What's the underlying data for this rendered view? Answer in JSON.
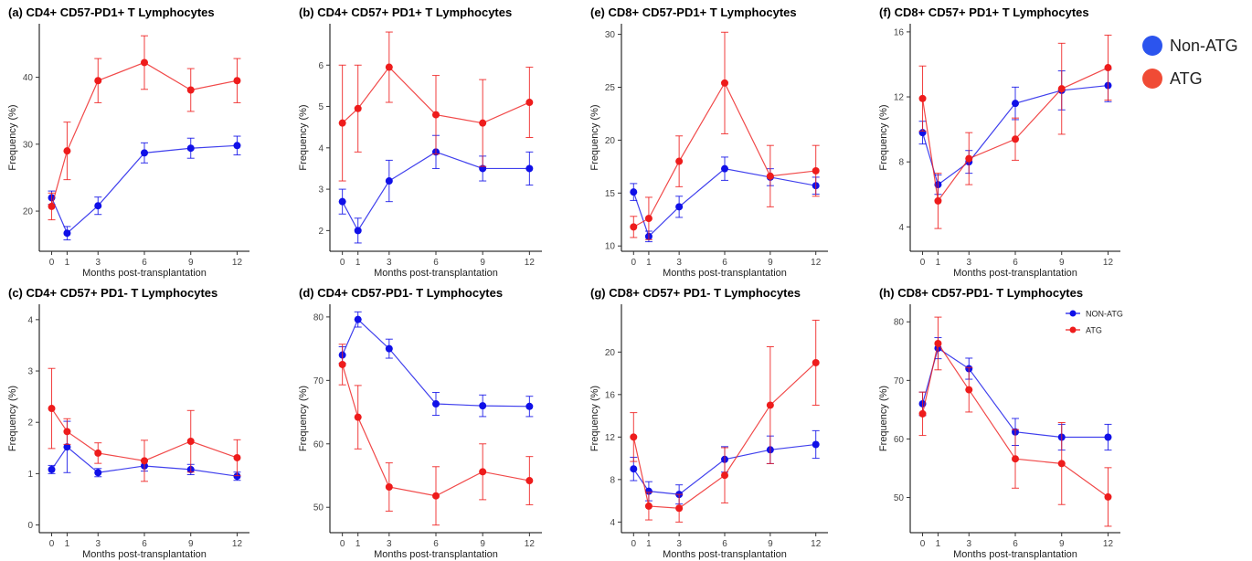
{
  "colors": {
    "non_atg": "#1010e8",
    "atg": "#ee1c1c",
    "non_atg_legend": "#2b54ee",
    "atg_legend": "#f04b35"
  },
  "legend": [
    {
      "label": "Non-ATG",
      "color": "#2b54ee"
    },
    {
      "label": "ATG",
      "color": "#f04b35"
    }
  ],
  "chart_data": [
    {
      "type": "line",
      "title": "(a) CD4+ CD57-PD1+ T Lymphocytes",
      "xlabel": "Months post-transplantation",
      "ylabel": "Frequency (%)",
      "x": [
        0,
        1,
        3,
        6,
        9,
        12
      ],
      "xticks": [
        "0",
        "1",
        "3",
        "6",
        "9",
        "12"
      ],
      "ylim": [
        14,
        48
      ],
      "yticks": [
        20,
        30,
        40
      ],
      "series": [
        {
          "key": "non_atg",
          "values": [
            22,
            16.7,
            20.8,
            28.7,
            29.4,
            29.8
          ],
          "err": [
            1.0,
            1.0,
            1.3,
            1.5,
            1.5,
            1.4
          ]
        },
        {
          "key": "atg",
          "values": [
            20.7,
            29.0,
            39.5,
            42.2,
            38.1,
            39.5
          ],
          "err": [
            2.0,
            4.3,
            3.3,
            4.0,
            3.2,
            3.3
          ]
        }
      ]
    },
    {
      "type": "line",
      "title": "(b) CD4+ CD57+ PD1+ T Lymphocytes",
      "xlabel": "Months post-transplantation",
      "ylabel": "Frequency (%)",
      "x": [
        0,
        1,
        3,
        6,
        9,
        12
      ],
      "xticks": [
        "0",
        "1",
        "3",
        "6",
        "9",
        "12"
      ],
      "ylim": [
        1.5,
        7
      ],
      "yticks": [
        2,
        3,
        4,
        5,
        6
      ],
      "series": [
        {
          "key": "non_atg",
          "values": [
            2.7,
            2.0,
            3.2,
            3.9,
            3.5,
            3.5
          ],
          "err": [
            0.3,
            0.3,
            0.5,
            0.4,
            0.3,
            0.4
          ]
        },
        {
          "key": "atg",
          "values": [
            4.6,
            4.95,
            5.95,
            4.8,
            4.6,
            5.1
          ],
          "err": [
            1.4,
            1.05,
            0.85,
            0.95,
            1.05,
            0.85
          ]
        }
      ]
    },
    {
      "type": "line",
      "title": "(e) CD8+ CD57-PD1+ T Lymphocytes",
      "xlabel": "Months post-transplantation",
      "ylabel": "Frequency (%)",
      "x": [
        0,
        1,
        3,
        6,
        9,
        12
      ],
      "xticks": [
        "0",
        "1",
        "3",
        "6",
        "9",
        "12"
      ],
      "ylim": [
        9.5,
        31
      ],
      "yticks": [
        10,
        15,
        20,
        25,
        30
      ],
      "series": [
        {
          "key": "non_atg",
          "values": [
            15.1,
            10.9,
            13.7,
            17.3,
            16.5,
            15.7
          ],
          "err": [
            0.8,
            0.5,
            1.0,
            1.1,
            0.8,
            0.8
          ]
        },
        {
          "key": "atg",
          "values": [
            11.8,
            12.6,
            18.0,
            25.4,
            16.6,
            17.1
          ],
          "err": [
            1.0,
            2.0,
            2.4,
            4.8,
            2.9,
            2.4
          ]
        }
      ]
    },
    {
      "type": "line",
      "title": "(f) CD8+ CD57+ PD1+ T Lymphocytes",
      "xlabel": "Months post-transplantation",
      "ylabel": "Frequency (%)",
      "x": [
        0,
        1,
        3,
        6,
        9,
        12
      ],
      "xticks": [
        "0",
        "1",
        "3",
        "6",
        "9",
        "12"
      ],
      "ylim": [
        2.5,
        16.5
      ],
      "yticks": [
        4,
        8,
        12,
        16
      ],
      "series": [
        {
          "key": "non_atg",
          "values": [
            9.8,
            6.6,
            8.0,
            11.6,
            12.4,
            12.7
          ],
          "err": [
            0.7,
            0.6,
            0.7,
            1.0,
            1.2,
            1.0
          ]
        },
        {
          "key": "atg",
          "values": [
            11.9,
            5.6,
            8.2,
            9.4,
            12.5,
            13.8
          ],
          "err": [
            2.0,
            1.7,
            1.6,
            1.3,
            2.8,
            2.0
          ]
        }
      ]
    },
    {
      "type": "line",
      "title": "(c) CD4+ CD57+ PD1- T Lymphocytes",
      "xlabel": "Months post-transplantation",
      "ylabel": "Frequency (%)",
      "x": [
        0,
        1,
        3,
        6,
        9,
        12
      ],
      "xticks": [
        "0",
        "1",
        "3",
        "6",
        "9",
        "12"
      ],
      "ylim": [
        -0.15,
        4.3
      ],
      "yticks": [
        0,
        1,
        2,
        3,
        4
      ],
      "series": [
        {
          "key": "non_atg",
          "values": [
            1.08,
            1.52,
            1.02,
            1.15,
            1.08,
            0.95
          ],
          "err": [
            0.08,
            0.5,
            0.08,
            0.1,
            0.1,
            0.08
          ]
        },
        {
          "key": "atg",
          "values": [
            2.27,
            1.82,
            1.4,
            1.25,
            1.63,
            1.31
          ],
          "err": [
            0.78,
            0.25,
            0.2,
            0.4,
            0.6,
            0.35
          ]
        }
      ]
    },
    {
      "type": "line",
      "title": "(d) CD4+ CD57-PD1- T Lymphocytes",
      "xlabel": "Months post-transplantation",
      "ylabel": "Frequency (%)",
      "x": [
        0,
        1,
        3,
        6,
        9,
        12
      ],
      "xticks": [
        "0",
        "1",
        "3",
        "6",
        "9",
        "12"
      ],
      "ylim": [
        46,
        82
      ],
      "yticks": [
        50,
        60,
        70,
        80
      ],
      "series": [
        {
          "key": "non_atg",
          "values": [
            74.0,
            79.6,
            75.0,
            66.3,
            66.0,
            65.9
          ],
          "err": [
            1.3,
            1.2,
            1.5,
            1.8,
            1.7,
            1.6
          ]
        },
        {
          "key": "atg",
          "values": [
            72.5,
            64.2,
            53.2,
            51.8,
            55.6,
            54.2
          ],
          "err": [
            3.2,
            5.0,
            3.8,
            4.6,
            4.4,
            3.8
          ]
        }
      ]
    },
    {
      "type": "line",
      "title": "(g) CD8+ CD57+ PD1- T Lymphocytes",
      "xlabel": "Months post-transplantation",
      "ylabel": "Frequency (%)",
      "x": [
        0,
        1,
        3,
        6,
        9,
        12
      ],
      "xticks": [
        "0",
        "1",
        "3",
        "6",
        "9",
        "12"
      ],
      "ylim": [
        3,
        24.5
      ],
      "yticks": [
        4,
        8,
        12,
        16,
        20
      ],
      "series": [
        {
          "key": "non_atg",
          "values": [
            9.0,
            6.9,
            6.6,
            9.9,
            10.8,
            11.3
          ],
          "err": [
            1.1,
            0.9,
            0.9,
            1.2,
            1.3,
            1.3
          ]
        },
        {
          "key": "atg",
          "values": [
            12.0,
            5.5,
            5.3,
            8.4,
            15.0,
            19.0
          ],
          "err": [
            2.3,
            1.3,
            1.3,
            2.6,
            5.5,
            4.0
          ]
        }
      ]
    },
    {
      "type": "line",
      "title": "(h) CD8+ CD57-PD1- T Lymphocytes",
      "xlabel": "Months post-transplantation",
      "ylabel": "Frequency (%)",
      "x": [
        0,
        1,
        3,
        6,
        9,
        12
      ],
      "xticks": [
        "0",
        "1",
        "3",
        "6",
        "9",
        "12"
      ],
      "ylim": [
        44,
        83
      ],
      "yticks": [
        50,
        60,
        70,
        80
      ],
      "series": [
        {
          "key": "non_atg",
          "values": [
            66.0,
            75.5,
            72.0,
            61.2,
            60.3,
            60.3
          ],
          "err": [
            2.0,
            1.8,
            1.8,
            2.3,
            2.2,
            2.2
          ]
        },
        {
          "key": "atg",
          "values": [
            64.3,
            76.3,
            68.4,
            56.6,
            55.8,
            50.1
          ],
          "err": [
            3.7,
            4.5,
            3.8,
            5.0,
            7.0,
            5.0
          ]
        }
      ],
      "inset_legend": [
        {
          "key": "non_atg",
          "label": "NON-ATG"
        },
        {
          "key": "atg",
          "label": "ATG"
        }
      ]
    }
  ]
}
